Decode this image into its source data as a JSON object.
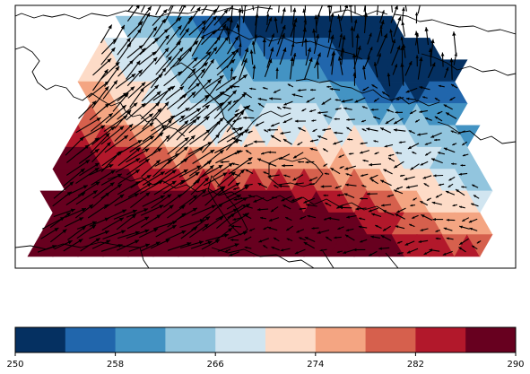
{
  "map": {
    "type": "filled-contour-with-wind-vectors",
    "colormap": "RdBu_r",
    "vector_color": "#000000",
    "coastline_color": "#000000"
  },
  "chart_data": {
    "type": "heatmap",
    "colorbar": {
      "orientation": "horizontal",
      "placement": "bottom",
      "vmin": 250,
      "vmax": 290,
      "levels": [
        250,
        254,
        258,
        262,
        266,
        270,
        274,
        278,
        282,
        286,
        290
      ],
      "tick_values": [
        250,
        258,
        266,
        274,
        282,
        290
      ],
      "tick_labels": [
        "250",
        "258",
        "266",
        "274",
        "282",
        "290"
      ],
      "colors": [
        "#053061",
        "#2166ac",
        "#4393c3",
        "#92c5de",
        "#d1e5f0",
        "#fddbc7",
        "#f4a582",
        "#d6604d",
        "#b2182b",
        "#67001f"
      ]
    }
  }
}
